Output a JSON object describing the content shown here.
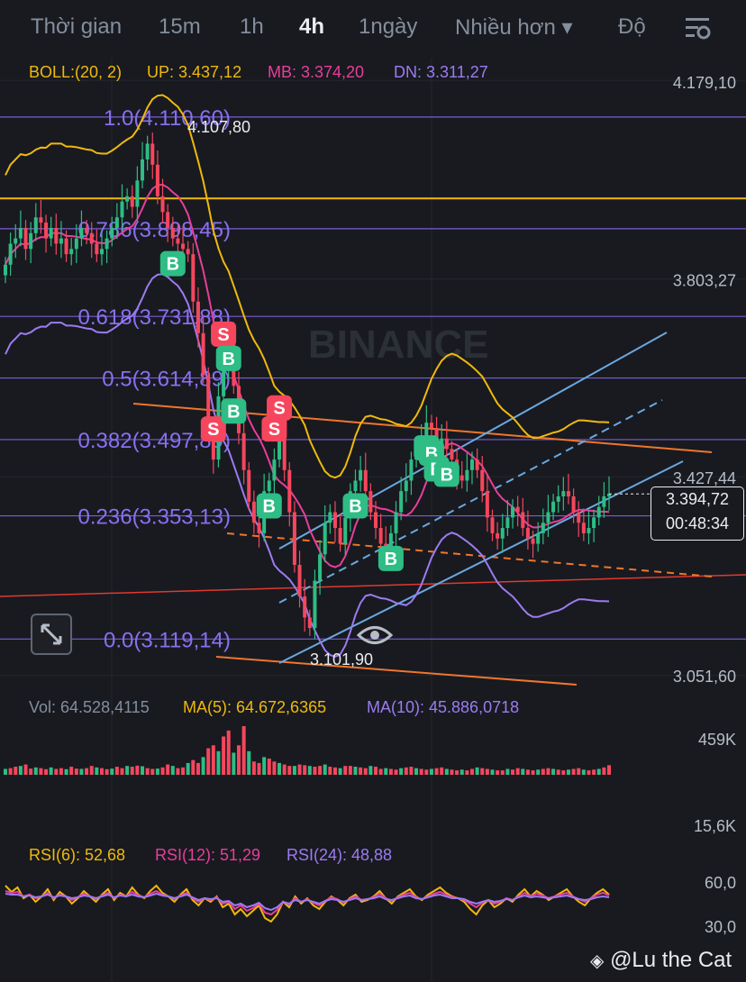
{
  "toolbar": {
    "tabs": [
      {
        "label": "Thời gian",
        "active": false
      },
      {
        "label": "15m",
        "active": false
      },
      {
        "label": "1h",
        "active": false
      },
      {
        "label": "4h",
        "active": true
      },
      {
        "label": "1ngày",
        "active": false
      },
      {
        "label": "Nhiều hơn ▾",
        "active": false
      },
      {
        "label": "Độ",
        "active": false
      }
    ],
    "settings_icon": "chart-settings-icon"
  },
  "boll": {
    "label": "BOLL:(20, 2)",
    "up": "UP: 3.437,12",
    "mb": "MB: 3.374,20",
    "dn": "DN: 3.311,27"
  },
  "volume": {
    "vol": "Vol: 64.528,4115",
    "ma5": "MA(5): 64.672,6365",
    "ma10": "MA(10): 45.886,0718"
  },
  "rsi": {
    "rsi6": "RSI(6): 52,68",
    "rsi12": "RSI(12): 51,29",
    "rsi24": "RSI(24): 48,88"
  },
  "price_box": {
    "price": "3.394,72",
    "countdown": "00:48:34"
  },
  "watermark_text": "@Lu the Cat",
  "chart_data": [
    {
      "type": "candlestick",
      "title": "",
      "price_axis_labels": [
        "4.179,10",
        "3.803,27",
        "3.427,44",
        "3.051,60"
      ],
      "ylim": [
        3050,
        4180
      ],
      "current_price": 3394.72,
      "high_label": "4.107,80",
      "low_label": "3.101,90",
      "fibonacci": [
        {
          "label": "1.0(4.110,60)",
          "value": 4110.6
        },
        {
          "label": "0.786(3.898,45)",
          "value": 3898.45
        },
        {
          "label": "0.618(3.731,88)",
          "value": 3731.88
        },
        {
          "label": "0.5(3.614,89)",
          "value": 3614.89
        },
        {
          "label": "0.382(3.497,89)",
          "value": 3497.89
        },
        {
          "label": "0.236(3.353,13)",
          "value": 3353.13
        },
        {
          "label": "0.0(3.119,14)",
          "value": 3119.14
        }
      ],
      "horizontal_line": 3956,
      "candles_close": [
        3830,
        3870,
        3880,
        3900,
        3860,
        3890,
        3920,
        3910,
        3880,
        3900,
        3870,
        3880,
        3850,
        3860,
        3880,
        3900,
        3890,
        3870,
        3850,
        3860,
        3880,
        3900,
        3920,
        3950,
        3960,
        3940,
        3990,
        4030,
        4060,
        4020,
        3960,
        3930,
        3900,
        3880,
        3870,
        3860,
        3850,
        3760,
        3700,
        3620,
        3520,
        3460,
        3580,
        3640,
        3700,
        3600,
        3510,
        3440,
        3380,
        3340,
        3320,
        3400,
        3420,
        3460,
        3500,
        3440,
        3360,
        3260,
        3200,
        3160,
        3140,
        3230,
        3280,
        3340,
        3360,
        3330,
        3300,
        3350,
        3400,
        3420,
        3440,
        3400,
        3360,
        3330,
        3300,
        3290,
        3320,
        3360,
        3400,
        3420,
        3460,
        3480,
        3500,
        3530,
        3520,
        3490,
        3500,
        3480,
        3460,
        3430,
        3420,
        3440,
        3460,
        3440,
        3400,
        3350,
        3320,
        3310,
        3330,
        3350,
        3370,
        3360,
        3330,
        3310,
        3300,
        3320,
        3340,
        3360,
        3380,
        3390,
        3400,
        3390,
        3360,
        3340,
        3320,
        3330,
        3350,
        3370,
        3390,
        3395
      ],
      "boll": {
        "up": 3437.12,
        "mb": 3374.2,
        "dn": 3311.27
      },
      "signals": [
        {
          "label": "S",
          "at": 43
        },
        {
          "label": "S",
          "at": 41
        },
        {
          "label": "S",
          "at": 53
        },
        {
          "label": "S",
          "at": 54
        },
        {
          "label": "B",
          "at": 33
        },
        {
          "label": "B",
          "at": 45
        },
        {
          "label": "B",
          "at": 44
        },
        {
          "label": "B",
          "at": 52
        },
        {
          "label": "B",
          "at": 69
        },
        {
          "label": "B",
          "at": 76
        },
        {
          "label": "B",
          "at": 83
        },
        {
          "label": "B",
          "at": 84
        },
        {
          "label": "B",
          "at": 85
        },
        {
          "label": "B",
          "at": 87
        }
      ]
    },
    {
      "type": "bar",
      "title": "",
      "axis_labels": [
        "459K",
        "15,6K"
      ],
      "values": [
        40,
        45,
        55,
        60,
        70,
        42,
        50,
        45,
        38,
        50,
        40,
        45,
        38,
        55,
        42,
        40,
        45,
        60,
        50,
        45,
        38,
        42,
        55,
        45,
        60,
        55,
        62,
        58,
        45,
        40,
        42,
        50,
        70,
        60,
        45,
        50,
        80,
        100,
        80,
        120,
        180,
        200,
        160,
        260,
        300,
        150,
        200,
        330,
        160,
        90,
        80,
        120,
        110,
        90,
        80,
        70,
        60,
        60,
        70,
        65,
        60,
        55,
        60,
        70,
        55,
        50,
        45,
        60,
        60,
        55,
        50,
        45,
        60,
        55,
        40,
        45,
        40,
        35,
        45,
        50,
        55,
        45,
        40,
        35,
        40,
        45,
        50,
        40,
        35,
        30,
        35,
        30,
        40,
        50,
        45,
        40,
        35,
        30,
        30,
        40,
        35,
        45,
        40,
        35,
        30,
        35,
        40,
        45,
        40,
        35,
        30,
        35,
        40,
        45,
        35,
        30,
        35,
        40,
        50,
        65
      ]
    },
    {
      "type": "line",
      "title": "",
      "axis_labels": [
        "60,0",
        "30,0"
      ],
      "series": [
        {
          "name": "RSI(6)",
          "values": [
            62,
            55,
            60,
            48,
            52,
            44,
            50,
            58,
            46,
            55,
            50,
            42,
            48,
            56,
            50,
            44,
            52,
            58,
            46,
            54,
            50,
            60,
            52,
            48,
            56,
            62,
            54,
            50,
            44,
            52,
            58,
            46,
            40,
            48,
            44,
            50,
            38,
            42,
            30,
            36,
            28,
            34,
            40,
            26,
            22,
            30,
            44,
            38,
            50,
            42,
            48,
            40,
            36,
            44,
            50,
            46,
            40,
            48,
            52,
            44,
            46,
            50,
            56,
            48,
            42,
            50,
            54,
            58,
            50,
            46,
            52,
            56,
            60,
            54,
            50,
            48,
            44,
            36,
            30,
            40,
            46,
            38,
            42,
            48,
            44,
            52,
            58,
            50,
            56,
            52,
            46,
            50,
            54,
            58,
            50,
            44,
            40,
            48,
            54,
            58,
            52
          ]
        },
        {
          "name": "RSI(12)",
          "values": [
            56,
            54,
            55,
            50,
            52,
            48,
            50,
            54,
            48,
            52,
            50,
            46,
            49,
            53,
            50,
            47,
            51,
            54,
            48,
            52,
            50,
            55,
            51,
            49,
            53,
            56,
            52,
            50,
            47,
            51,
            54,
            48,
            44,
            48,
            46,
            49,
            42,
            44,
            36,
            40,
            34,
            37,
            42,
            32,
            30,
            35,
            44,
            41,
            48,
            44,
            47,
            43,
            40,
            45,
            49,
            47,
            43,
            47,
            50,
            46,
            47,
            49,
            53,
            48,
            45,
            49,
            52,
            54,
            49,
            47,
            50,
            53,
            55,
            52,
            49,
            48,
            46,
            42,
            38,
            43,
            46,
            42,
            44,
            48,
            46,
            50,
            54,
            50,
            53,
            51,
            48,
            50,
            52,
            54,
            50,
            47,
            44,
            48,
            52,
            54,
            51
          ]
        },
        {
          "name": "RSI(24)",
          "values": [
            53,
            52,
            52,
            50,
            51,
            49,
            50,
            52,
            49,
            51,
            50,
            48,
            49,
            51,
            50,
            48,
            50,
            52,
            49,
            51,
            50,
            52,
            50,
            49,
            51,
            53,
            51,
            50,
            48,
            50,
            52,
            49,
            46,
            48,
            47,
            48,
            44,
            45,
            40,
            42,
            38,
            40,
            43,
            37,
            35,
            38,
            44,
            42,
            46,
            44,
            46,
            44,
            42,
            45,
            47,
            46,
            44,
            46,
            48,
            46,
            47,
            48,
            50,
            47,
            46,
            48,
            50,
            51,
            48,
            47,
            49,
            51,
            52,
            50,
            48,
            48,
            47,
            44,
            42,
            44,
            46,
            44,
            45,
            47,
            46,
            49,
            51,
            49,
            50,
            49,
            48,
            49,
            50,
            51,
            49,
            47,
            46,
            47,
            49,
            50,
            49
          ]
        }
      ]
    }
  ],
  "colors": {
    "background": "#181a20",
    "up": "#2ebd85",
    "down": "#f6465d",
    "boll_up": "#f0b90b",
    "boll_mb": "#e83e9a",
    "boll_dn": "#9c7bf0",
    "fib": "#7a5cd6",
    "fib_text": "#8a6ff0",
    "channel": "#6aa8e0",
    "trend": "#f0762b",
    "yellow_line": "#f0b90b",
    "red_line": "#e0392f"
  }
}
